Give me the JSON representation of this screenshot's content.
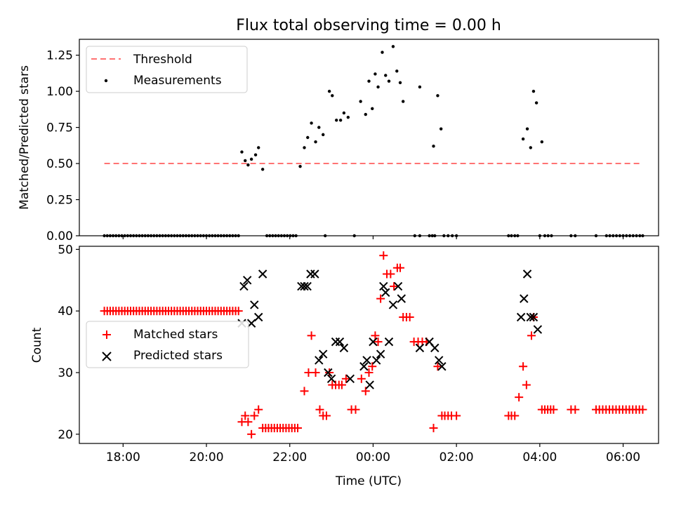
{
  "title": "Flux total observing time = 0.00 h",
  "colors": {
    "threshold": "#ff7373",
    "measurements": "#000000",
    "matched": "#ff0000",
    "predicted": "#000000",
    "axis": "#000000"
  },
  "chart_data": [
    {
      "type": "scatter",
      "panel": "top",
      "ylabel": "Matched/Predicted stars",
      "ylim": [
        0,
        1.36
      ],
      "xlim": [
        16.95,
        30.85
      ],
      "yticks": [
        0.0,
        0.25,
        0.5,
        0.75,
        1.0,
        1.25
      ],
      "ytick_labels": [
        "0.00",
        "0.25",
        "0.50",
        "0.75",
        "1.00",
        "1.25"
      ],
      "legend": {
        "position": "top-left",
        "entries": [
          "Threshold",
          "Measurements"
        ]
      },
      "threshold": {
        "name": "Threshold",
        "y": 0.5,
        "x_range": [
          17.55,
          30.45
        ]
      },
      "series": [
        {
          "name": "Measurements",
          "points": [
            [
              20.85,
              0.58
            ],
            [
              20.93,
              0.52
            ],
            [
              21.0,
              0.49
            ],
            [
              21.08,
              0.53
            ],
            [
              21.18,
              0.56
            ],
            [
              21.25,
              0.61
            ],
            [
              21.35,
              0.46
            ],
            [
              22.25,
              0.48
            ],
            [
              22.35,
              0.61
            ],
            [
              22.43,
              0.68
            ],
            [
              22.52,
              0.78
            ],
            [
              22.62,
              0.65
            ],
            [
              22.7,
              0.75
            ],
            [
              22.8,
              0.7
            ],
            [
              22.95,
              1.0
            ],
            [
              23.02,
              0.97
            ],
            [
              23.12,
              0.8
            ],
            [
              23.22,
              0.8
            ],
            [
              23.3,
              0.85
            ],
            [
              23.4,
              0.82
            ],
            [
              23.7,
              0.93
            ],
            [
              23.82,
              0.84
            ],
            [
              23.9,
              1.07
            ],
            [
              23.98,
              0.88
            ],
            [
              24.05,
              1.12
            ],
            [
              24.12,
              1.03
            ],
            [
              24.22,
              1.27
            ],
            [
              24.3,
              1.11
            ],
            [
              24.38,
              1.07
            ],
            [
              24.48,
              1.31
            ],
            [
              24.57,
              1.14
            ],
            [
              24.65,
              1.06
            ],
            [
              24.72,
              0.93
            ],
            [
              25.12,
              1.03
            ],
            [
              25.45,
              0.62
            ],
            [
              25.55,
              0.97
            ],
            [
              25.63,
              0.74
            ],
            [
              27.6,
              0.67
            ],
            [
              27.7,
              0.74
            ],
            [
              27.78,
              0.61
            ],
            [
              27.85,
              1.0
            ],
            [
              27.92,
              0.92
            ],
            [
              28.05,
              0.65
            ]
          ],
          "zero_points_x": [
            17.55,
            17.62,
            17.69,
            17.76,
            17.83,
            17.9,
            17.97,
            18.04,
            18.11,
            18.18,
            18.25,
            18.32,
            18.39,
            18.46,
            18.53,
            18.6,
            18.67,
            18.74,
            18.81,
            18.88,
            18.95,
            19.02,
            19.09,
            19.16,
            19.23,
            19.3,
            19.37,
            19.44,
            19.51,
            19.58,
            19.65,
            19.72,
            19.79,
            19.86,
            19.93,
            20.0,
            20.07,
            20.14,
            20.21,
            20.28,
            20.35,
            20.42,
            20.49,
            20.56,
            20.63,
            20.7,
            20.77,
            21.45,
            21.52,
            21.59,
            21.66,
            21.73,
            21.8,
            21.87,
            21.94,
            22.01,
            22.08,
            22.15,
            22.85,
            23.55,
            25.0,
            25.12,
            25.35,
            25.42,
            25.48,
            25.7,
            25.8,
            25.9,
            26.0,
            27.25,
            27.32,
            27.4,
            27.47,
            28.0,
            28.12,
            28.2,
            28.28,
            28.75,
            28.85,
            29.35,
            29.6,
            29.68,
            29.76,
            29.84,
            29.92,
            30.0,
            30.08,
            30.16,
            30.24,
            30.32,
            30.4,
            30.47
          ]
        }
      ]
    },
    {
      "type": "scatter",
      "panel": "bottom",
      "xlabel": "Time (UTC)",
      "ylabel": "Count",
      "ylim": [
        18.5,
        50.5
      ],
      "xlim": [
        16.95,
        30.85
      ],
      "yticks": [
        20,
        30,
        40,
        50
      ],
      "ytick_labels": [
        "20",
        "30",
        "40",
        "50"
      ],
      "xticks": [
        18,
        20,
        22,
        24,
        26,
        28,
        30
      ],
      "xtick_labels": [
        "18:00",
        "20:00",
        "22:00",
        "00:00",
        "02:00",
        "04:00",
        "06:00"
      ],
      "legend": {
        "position": "center-left",
        "entries": [
          "Matched stars",
          "Predicted stars"
        ]
      },
      "series": [
        {
          "name": "Matched stars",
          "marker": "plus",
          "flat_runs": [
            {
              "y": 40,
              "x_start": 17.55,
              "x_end": 20.77,
              "step": 0.07
            },
            {
              "y": 21,
              "x_start": 21.35,
              "x_end": 22.25,
              "step": 0.07
            },
            {
              "y": 24,
              "x_start": 28.05,
              "x_end": 28.35,
              "step": 0.07
            },
            {
              "y": 24,
              "x_start": 29.35,
              "x_end": 30.47,
              "step": 0.08
            }
          ],
          "points": [
            [
              20.85,
              22
            ],
            [
              20.93,
              23
            ],
            [
              21.0,
              22
            ],
            [
              21.08,
              20
            ],
            [
              21.15,
              23
            ],
            [
              21.25,
              24
            ],
            [
              22.35,
              27
            ],
            [
              22.45,
              30
            ],
            [
              22.52,
              36
            ],
            [
              22.62,
              30
            ],
            [
              22.72,
              24
            ],
            [
              22.8,
              23
            ],
            [
              22.88,
              23
            ],
            [
              22.95,
              30
            ],
            [
              23.02,
              28
            ],
            [
              23.1,
              28
            ],
            [
              23.18,
              28
            ],
            [
              23.25,
              28
            ],
            [
              23.35,
              29
            ],
            [
              23.48,
              24
            ],
            [
              23.58,
              24
            ],
            [
              23.72,
              29
            ],
            [
              23.82,
              27
            ],
            [
              23.9,
              30
            ],
            [
              23.98,
              31
            ],
            [
              24.05,
              36
            ],
            [
              24.12,
              35
            ],
            [
              24.18,
              42
            ],
            [
              24.25,
              49
            ],
            [
              24.33,
              46
            ],
            [
              24.42,
              46
            ],
            [
              24.5,
              44
            ],
            [
              24.58,
              47
            ],
            [
              24.65,
              47
            ],
            [
              24.72,
              39
            ],
            [
              24.8,
              39
            ],
            [
              24.88,
              39
            ],
            [
              24.98,
              35
            ],
            [
              25.08,
              35
            ],
            [
              25.18,
              35
            ],
            [
              25.28,
              35
            ],
            [
              25.45,
              21
            ],
            [
              25.55,
              31
            ],
            [
              25.65,
              23
            ],
            [
              25.72,
              23
            ],
            [
              25.8,
              23
            ],
            [
              25.88,
              23
            ],
            [
              26.0,
              23
            ],
            [
              27.25,
              23
            ],
            [
              27.32,
              23
            ],
            [
              27.4,
              23
            ],
            [
              27.5,
              26
            ],
            [
              27.6,
              31
            ],
            [
              27.68,
              28
            ],
            [
              27.8,
              36
            ],
            [
              27.85,
              39
            ],
            [
              28.75,
              24
            ],
            [
              28.85,
              24
            ]
          ]
        },
        {
          "name": "Predicted stars",
          "marker": "x",
          "points": [
            [
              20.85,
              38
            ],
            [
              20.9,
              44
            ],
            [
              20.98,
              45
            ],
            [
              21.08,
              38
            ],
            [
              21.15,
              41
            ],
            [
              21.25,
              39
            ],
            [
              21.35,
              46
            ],
            [
              22.28,
              44
            ],
            [
              22.35,
              44
            ],
            [
              22.42,
              44
            ],
            [
              22.5,
              46
            ],
            [
              22.6,
              46
            ],
            [
              22.7,
              32
            ],
            [
              22.8,
              33
            ],
            [
              22.92,
              30
            ],
            [
              23.0,
              29
            ],
            [
              23.1,
              35
            ],
            [
              23.2,
              35
            ],
            [
              23.3,
              34
            ],
            [
              23.45,
              29
            ],
            [
              23.78,
              31
            ],
            [
              23.85,
              32
            ],
            [
              23.92,
              28
            ],
            [
              24.0,
              35
            ],
            [
              24.08,
              32
            ],
            [
              24.18,
              33
            ],
            [
              24.25,
              44
            ],
            [
              24.3,
              43
            ],
            [
              24.38,
              35
            ],
            [
              24.48,
              41
            ],
            [
              24.6,
              44
            ],
            [
              24.68,
              42
            ],
            [
              25.12,
              34
            ],
            [
              25.35,
              35
            ],
            [
              25.48,
              34
            ],
            [
              25.58,
              32
            ],
            [
              25.65,
              31
            ],
            [
              27.55,
              39
            ],
            [
              27.62,
              42
            ],
            [
              27.7,
              46
            ],
            [
              27.78,
              39
            ],
            [
              27.85,
              39
            ],
            [
              27.95,
              37
            ]
          ]
        }
      ]
    }
  ]
}
